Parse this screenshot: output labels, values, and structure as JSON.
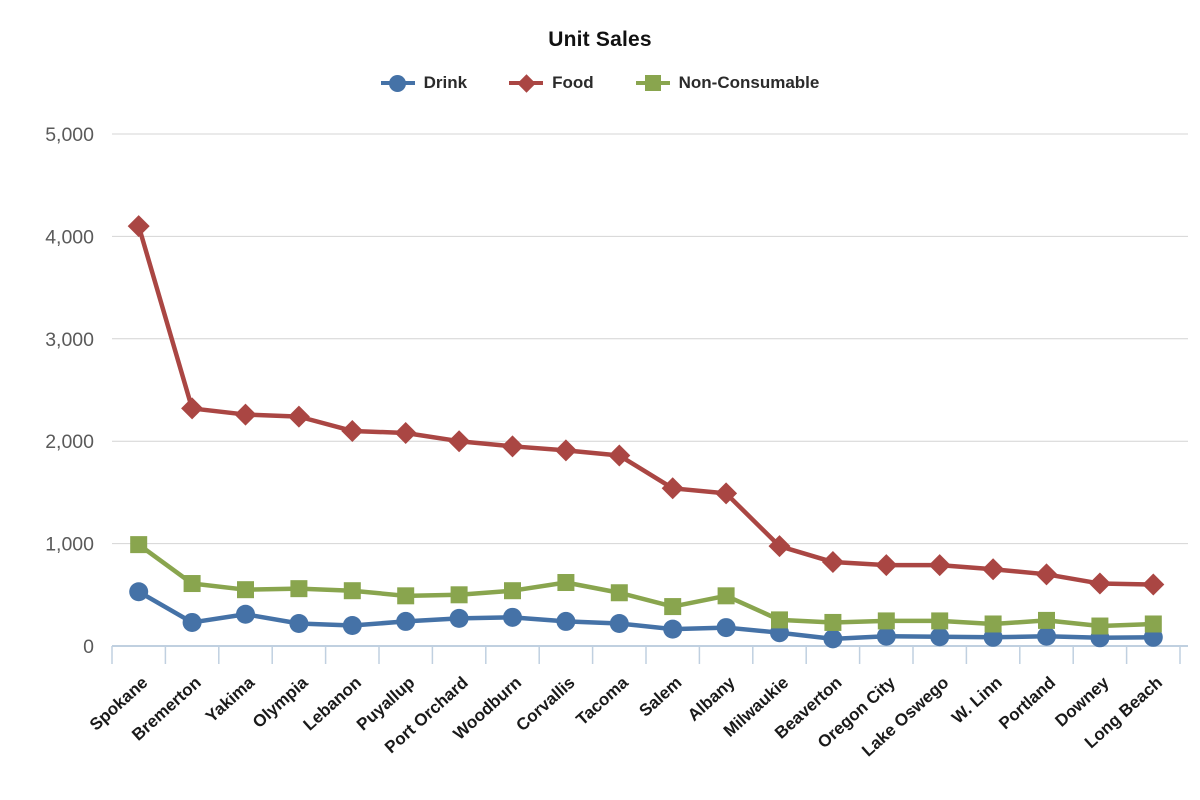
{
  "title": "Unit Sales",
  "chart_data": {
    "type": "line",
    "title": "Unit Sales",
    "categories": [
      "Spokane",
      "Bremerton",
      "Yakima",
      "Olympia",
      "Lebanon",
      "Puyallup",
      "Port Orchard",
      "Woodburn",
      "Corvallis",
      "Tacoma",
      "Salem",
      "Albany",
      "Milwaukie",
      "Beaverton",
      "Oregon City",
      "Lake Oswego",
      "W. Linn",
      "Portland",
      "Downey",
      "Long Beach"
    ],
    "series": [
      {
        "name": "Drink",
        "marker": "circle",
        "color": "#4572A7",
        "values": [
          530,
          230,
          310,
          220,
          200,
          240,
          270,
          280,
          240,
          220,
          165,
          180,
          130,
          70,
          95,
          90,
          85,
          95,
          80,
          85
        ]
      },
      {
        "name": "Food",
        "marker": "diamond",
        "color": "#AA4643",
        "values": [
          4100,
          2320,
          2260,
          2240,
          2100,
          2080,
          2000,
          1950,
          1910,
          1860,
          1540,
          1490,
          975,
          820,
          790,
          790,
          750,
          700,
          610,
          600
        ]
      },
      {
        "name": "Non-Consumable",
        "marker": "square",
        "color": "#89A54E",
        "values": [
          990,
          610,
          550,
          560,
          540,
          490,
          500,
          540,
          620,
          520,
          385,
          490,
          255,
          230,
          245,
          245,
          215,
          250,
          195,
          215
        ]
      }
    ],
    "xlabel": "",
    "ylabel": "",
    "ylim": [
      0,
      5000
    ],
    "yticks": [
      0,
      1000,
      2000,
      3000,
      4000,
      5000
    ],
    "ytick_labels": [
      "0",
      "1,000",
      "2,000",
      "3,000",
      "4,000",
      "5,000"
    ],
    "grid": true,
    "legend_position": "top",
    "x_label_rotation": -42
  },
  "colors": {
    "gridline": "#D4D4D4",
    "axis_line": "#C0D0E0",
    "y_tick_text": "#5A5A5A",
    "x_tick_text": "#1A1A1A",
    "title_text": "#111111",
    "background": "#FFFFFF"
  }
}
